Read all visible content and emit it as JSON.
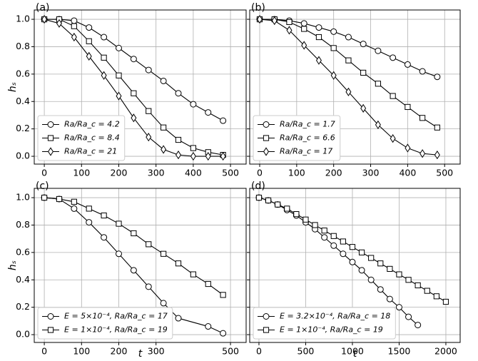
{
  "chart_data": [
    {
      "type": "line",
      "label": "(a)",
      "ylabel": "hₛ",
      "grid": true,
      "legend": "lower left",
      "ytick_labels": true,
      "xlim": [
        -27,
        542
      ],
      "ylim": [
        -0.057,
        1.068
      ],
      "xticks": [
        0,
        100,
        200,
        300,
        400,
        500
      ],
      "yticks": [
        {
          "value": 0,
          "label": "0.0"
        },
        0.2,
        0.4,
        0.6,
        0.8,
        {
          "value": 1,
          "label": "1.0"
        }
      ],
      "series": [
        {
          "name": "Ra/Ra_c = 4.2",
          "color": "#000000",
          "marker": "circle",
          "x": [
            0,
            40,
            80,
            120,
            160,
            200,
            240,
            280,
            320,
            360,
            400,
            440,
            480
          ],
          "values": [
            1.0,
            1.0,
            0.99,
            0.94,
            0.87,
            0.79,
            0.71,
            0.63,
            0.55,
            0.46,
            0.38,
            0.32,
            0.26
          ]
        },
        {
          "name": "Ra/Ra_c = 8.4",
          "color": "#000000",
          "marker": "square",
          "x": [
            0,
            40,
            80,
            120,
            160,
            200,
            240,
            280,
            320,
            360,
            400,
            440,
            480
          ],
          "values": [
            1.0,
            1.0,
            0.95,
            0.84,
            0.72,
            0.59,
            0.46,
            0.33,
            0.21,
            0.12,
            0.06,
            0.03,
            0.01
          ]
        },
        {
          "name": "Ra/Ra_c = 21",
          "color": "#000000",
          "marker": "diamond",
          "x": [
            0,
            40,
            80,
            120,
            160,
            200,
            240,
            280,
            320,
            360,
            400,
            440,
            480
          ],
          "values": [
            1.0,
            0.97,
            0.87,
            0.73,
            0.59,
            0.44,
            0.28,
            0.14,
            0.05,
            0.01,
            0.0,
            0.0,
            0.0
          ]
        }
      ]
    },
    {
      "type": "line",
      "label": "(b)",
      "grid": true,
      "legend": "lower left",
      "ytick_labels": false,
      "xlim": [
        -27,
        542
      ],
      "ylim": [
        -0.057,
        1.068
      ],
      "xticks": [
        0,
        100,
        200,
        300,
        400,
        500
      ],
      "yticks": [
        0,
        0.2,
        0.4,
        0.6,
        0.8,
        1
      ],
      "series": [
        {
          "name": "Ra/Ra_c = 1.7",
          "color": "#000000",
          "marker": "circle",
          "x": [
            0,
            40,
            80,
            120,
            160,
            200,
            240,
            280,
            320,
            360,
            400,
            440,
            480
          ],
          "values": [
            1.0,
            1.0,
            0.99,
            0.97,
            0.94,
            0.91,
            0.87,
            0.82,
            0.77,
            0.72,
            0.67,
            0.62,
            0.58
          ]
        },
        {
          "name": "Ra/Ra_c = 6.6",
          "color": "#000000",
          "marker": "square",
          "x": [
            0,
            40,
            80,
            120,
            160,
            200,
            240,
            280,
            320,
            360,
            400,
            440,
            480
          ],
          "values": [
            1.0,
            1.0,
            0.98,
            0.93,
            0.87,
            0.79,
            0.7,
            0.61,
            0.53,
            0.44,
            0.36,
            0.28,
            0.21
          ]
        },
        {
          "name": "Ra/Ra_c = 17",
          "color": "#000000",
          "marker": "diamond",
          "x": [
            0,
            40,
            80,
            120,
            160,
            200,
            240,
            280,
            320,
            360,
            400,
            440,
            480
          ],
          "values": [
            1.0,
            0.99,
            0.92,
            0.81,
            0.7,
            0.59,
            0.47,
            0.35,
            0.23,
            0.13,
            0.06,
            0.02,
            0.01
          ]
        }
      ]
    },
    {
      "type": "line",
      "label": "(c)",
      "ylabel": "hₛ",
      "xlabel": "t",
      "grid": true,
      "legend": "lower left",
      "ytick_labels": true,
      "xlim": [
        -27,
        542
      ],
      "ylim": [
        -0.057,
        1.068
      ],
      "xticks": [
        0,
        100,
        200,
        300,
        500
      ],
      "yticks": [
        {
          "value": 0,
          "label": "0.0"
        },
        0.2,
        0.4,
        0.6,
        0.8,
        {
          "value": 1,
          "label": "1.0"
        }
      ],
      "series": [
        {
          "name": "E = 5×10⁻⁴, Ra/Ra_c = 17",
          "color": "#000000",
          "marker": "circle",
          "x": [
            0,
            40,
            80,
            120,
            160,
            200,
            240,
            280,
            320,
            360,
            440,
            480
          ],
          "values": [
            1.0,
            0.99,
            0.92,
            0.82,
            0.71,
            0.59,
            0.47,
            0.35,
            0.23,
            0.12,
            0.06,
            0.01
          ]
        },
        {
          "name": "E = 1×10⁻⁴, Ra/Ra_c = 19",
          "color": "#000000",
          "marker": "square",
          "x": [
            0,
            40,
            80,
            120,
            160,
            200,
            240,
            280,
            320,
            360,
            400,
            440,
            480
          ],
          "values": [
            1.0,
            0.99,
            0.97,
            0.92,
            0.87,
            0.81,
            0.74,
            0.66,
            0.59,
            0.52,
            0.44,
            0.37,
            0.29
          ]
        }
      ]
    },
    {
      "type": "line",
      "label": "(d)",
      "xlabel": "t",
      "grid": true,
      "legend": "lower left",
      "ytick_labels": false,
      "xlim": [
        -99,
        2153
      ],
      "ylim": [
        -0.057,
        1.068
      ],
      "xticks": [
        0,
        500,
        1000,
        1500,
        2000
      ],
      "yticks": [
        0,
        0.2,
        0.4,
        0.6,
        0.8,
        1
      ],
      "series": [
        {
          "name": "E = 3.2×10⁻⁴, Ra/Ra_c = 18",
          "color": "#000000",
          "marker": "circle",
          "x": [
            0,
            100,
            200,
            300,
            400,
            500,
            600,
            700,
            800,
            900,
            1000,
            1100,
            1200,
            1300,
            1400,
            1500,
            1600,
            1700
          ],
          "values": [
            1.0,
            0.98,
            0.95,
            0.91,
            0.87,
            0.82,
            0.77,
            0.71,
            0.65,
            0.59,
            0.53,
            0.47,
            0.4,
            0.33,
            0.26,
            0.2,
            0.13,
            0.07
          ]
        },
        {
          "name": "E = 1×10⁻⁴, Ra/Ra_c = 19",
          "color": "#000000",
          "marker": "square",
          "x": [
            0,
            100,
            200,
            300,
            400,
            500,
            600,
            700,
            800,
            900,
            1000,
            1100,
            1200,
            1300,
            1400,
            1500,
            1600,
            1700,
            1800,
            1900,
            2000
          ],
          "values": [
            1.0,
            0.98,
            0.95,
            0.92,
            0.88,
            0.84,
            0.8,
            0.76,
            0.72,
            0.68,
            0.64,
            0.6,
            0.56,
            0.52,
            0.48,
            0.44,
            0.4,
            0.36,
            0.32,
            0.28,
            0.24
          ]
        }
      ]
    }
  ]
}
